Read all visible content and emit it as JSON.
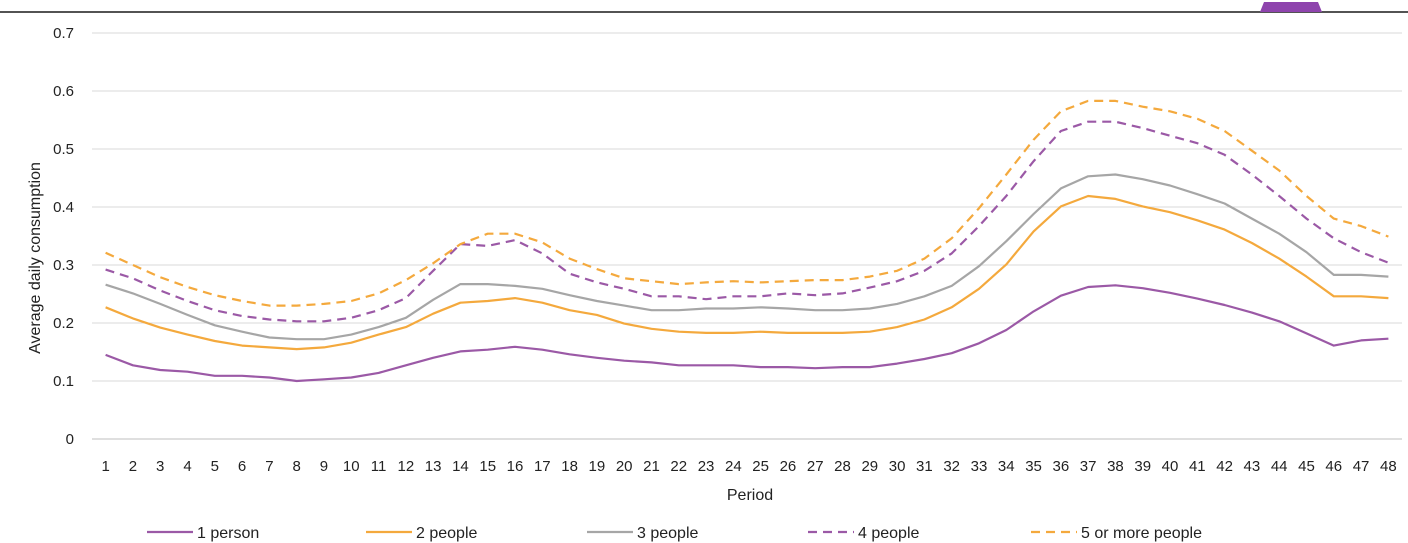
{
  "chart_data": {
    "type": "line",
    "title": "",
    "xlabel": "Period",
    "ylabel": "Average  daily consumption",
    "ylim": [
      0,
      0.7
    ],
    "yticks": [
      "0",
      "0.1",
      "0.2",
      "0.3",
      "0.4",
      "0.5",
      "0.6",
      "0.7"
    ],
    "x": [
      1,
      2,
      3,
      4,
      5,
      6,
      7,
      8,
      9,
      10,
      11,
      12,
      13,
      14,
      15,
      16,
      17,
      18,
      19,
      20,
      21,
      22,
      23,
      24,
      25,
      26,
      27,
      28,
      29,
      30,
      31,
      32,
      33,
      34,
      35,
      36,
      37,
      38,
      39,
      40,
      41,
      42,
      43,
      44,
      45,
      46,
      47,
      48
    ],
    "grid": true,
    "legend_position": "bottom",
    "series": [
      {
        "name": "1 person",
        "color": "#9b59a6",
        "dash": "solid",
        "values": [
          0.145,
          0.127,
          0.119,
          0.116,
          0.109,
          0.109,
          0.106,
          0.1,
          0.103,
          0.106,
          0.114,
          0.127,
          0.14,
          0.151,
          0.154,
          0.159,
          0.154,
          0.146,
          0.14,
          0.135,
          0.132,
          0.127,
          0.127,
          0.127,
          0.124,
          0.124,
          0.122,
          0.124,
          0.124,
          0.13,
          0.138,
          0.148,
          0.165,
          0.188,
          0.22,
          0.247,
          0.262,
          0.265,
          0.26,
          0.252,
          0.242,
          0.231,
          0.218,
          0.203,
          0.182,
          0.161,
          0.17,
          0.173
        ]
      },
      {
        "name": "2 people",
        "color": "#f4a93d",
        "dash": "solid",
        "values": [
          0.227,
          0.208,
          0.192,
          0.18,
          0.169,
          0.161,
          0.158,
          0.155,
          0.158,
          0.166,
          0.18,
          0.193,
          0.216,
          0.235,
          0.238,
          0.243,
          0.235,
          0.222,
          0.214,
          0.199,
          0.19,
          0.185,
          0.183,
          0.183,
          0.185,
          0.183,
          0.183,
          0.183,
          0.185,
          0.193,
          0.206,
          0.227,
          0.259,
          0.301,
          0.358,
          0.401,
          0.419,
          0.414,
          0.401,
          0.391,
          0.377,
          0.361,
          0.338,
          0.311,
          0.28,
          0.246,
          0.246,
          0.243
        ]
      },
      {
        "name": "3 people",
        "color": "#a6a6a6",
        "dash": "solid",
        "values": [
          0.266,
          0.251,
          0.233,
          0.214,
          0.196,
          0.185,
          0.175,
          0.172,
          0.172,
          0.18,
          0.193,
          0.209,
          0.24,
          0.267,
          0.267,
          0.264,
          0.259,
          0.248,
          0.238,
          0.23,
          0.222,
          0.222,
          0.225,
          0.225,
          0.227,
          0.225,
          0.222,
          0.222,
          0.225,
          0.233,
          0.246,
          0.264,
          0.298,
          0.341,
          0.388,
          0.432,
          0.453,
          0.456,
          0.448,
          0.437,
          0.422,
          0.406,
          0.38,
          0.354,
          0.322,
          0.283,
          0.283,
          0.28
        ]
      },
      {
        "name": "4 people",
        "color": "#9b59a6",
        "dash": "dashed",
        "values": [
          0.292,
          0.277,
          0.256,
          0.238,
          0.222,
          0.212,
          0.206,
          0.203,
          0.203,
          0.209,
          0.222,
          0.243,
          0.29,
          0.336,
          0.333,
          0.343,
          0.32,
          0.285,
          0.27,
          0.259,
          0.246,
          0.246,
          0.241,
          0.246,
          0.246,
          0.251,
          0.248,
          0.251,
          0.261,
          0.272,
          0.29,
          0.32,
          0.367,
          0.419,
          0.479,
          0.531,
          0.547,
          0.547,
          0.536,
          0.523,
          0.51,
          0.49,
          0.456,
          0.419,
          0.38,
          0.346,
          0.322,
          0.304
        ]
      },
      {
        "name": "5 or more people",
        "color": "#f4a93d",
        "dash": "dashed",
        "values": [
          0.321,
          0.3,
          0.279,
          0.262,
          0.248,
          0.238,
          0.23,
          0.23,
          0.233,
          0.238,
          0.251,
          0.274,
          0.303,
          0.336,
          0.354,
          0.354,
          0.339,
          0.311,
          0.293,
          0.277,
          0.272,
          0.267,
          0.27,
          0.272,
          0.27,
          0.272,
          0.274,
          0.274,
          0.28,
          0.29,
          0.311,
          0.346,
          0.398,
          0.456,
          0.516,
          0.565,
          0.583,
          0.583,
          0.573,
          0.565,
          0.552,
          0.531,
          0.497,
          0.463,
          0.419,
          0.38,
          0.367,
          0.349
        ]
      }
    ]
  }
}
